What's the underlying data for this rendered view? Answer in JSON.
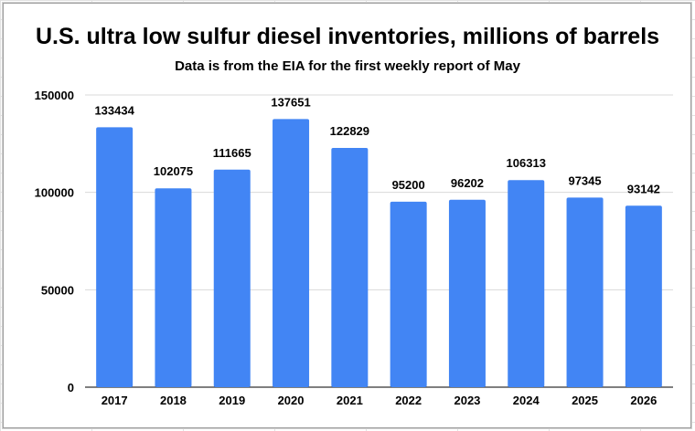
{
  "chart_data": {
    "type": "bar",
    "title": "U.S. ultra low sulfur diesel inventories, millions of barrels",
    "subtitle": "Data is from the EIA for the first weekly report of May",
    "xlabel": "",
    "ylabel": "",
    "categories": [
      "2017",
      "2018",
      "2019",
      "2020",
      "2021",
      "2022",
      "2023",
      "2024",
      "2025",
      "2026"
    ],
    "values": [
      133434,
      102075,
      111665,
      137651,
      122829,
      95200,
      96202,
      106313,
      97345,
      93142
    ],
    "data_labels": [
      "133434",
      "102075",
      "111665",
      "137651",
      "122829",
      "95200",
      "96202",
      "106313",
      "97345",
      "93142"
    ],
    "ylim": [
      0,
      150000
    ],
    "yticks": [
      0,
      50000,
      100000,
      150000
    ],
    "ytick_labels": [
      "0",
      "50000",
      "100000",
      "150000"
    ],
    "grid": true,
    "legend": "none",
    "bar_color": "#4285f4",
    "gridline_color": "#d9d9d9"
  }
}
